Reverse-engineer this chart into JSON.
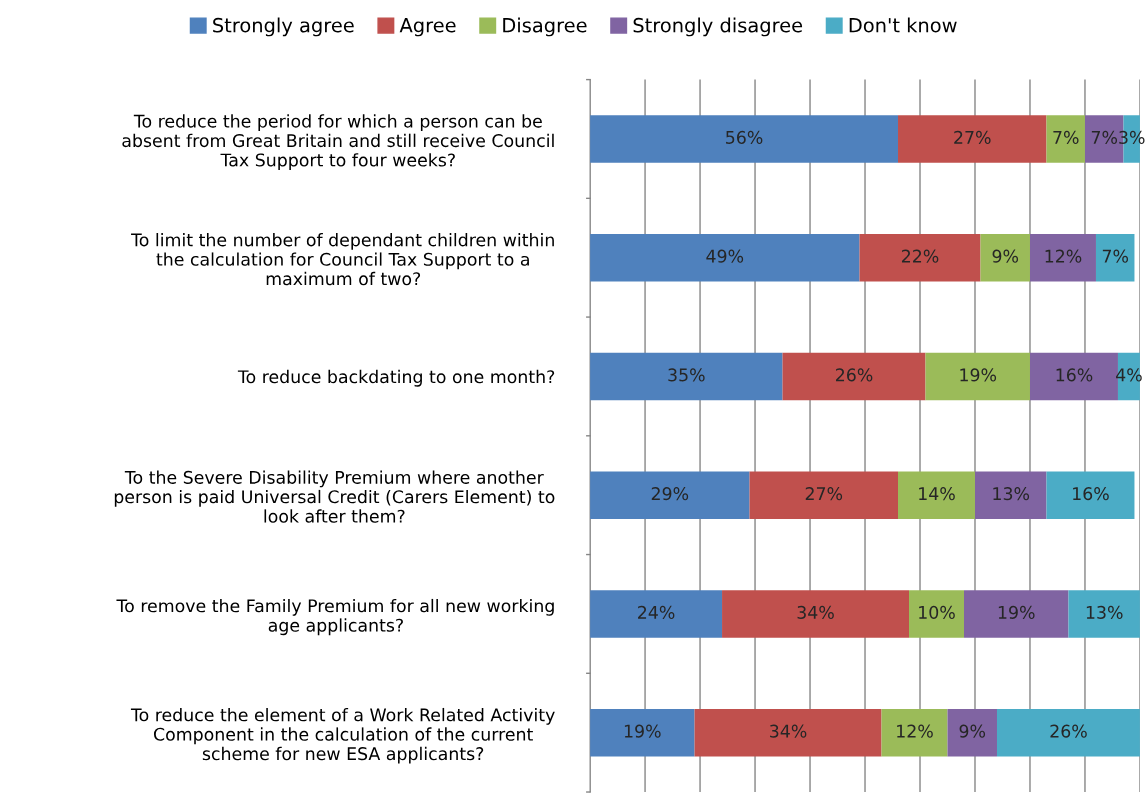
{
  "chart_data": {
    "type": "bar",
    "orientation": "horizontal",
    "stacked": true,
    "grid": "x",
    "legend": "top",
    "tick_labels": "y",
    "categories": [
      "To reduce the period for which a person can be\nabsent from Great Britain and still receive Council\nTax Support to four weeks?",
      "To limit the number of dependant children within\nthe calculation for Council Tax Support to a\nmaximum of two?",
      "To reduce backdating to one month?",
      "To the Severe Disability Premium where another\nperson is paid Universal Credit (Carers Element) to\nlook after them?",
      "To remove the Family Premium for all new working\nage applicants?",
      "To reduce the element of a Work Related Activity\nComponent in the calculation of the current\nscheme for new ESA applicants?"
    ],
    "series": [
      {
        "name": "Strongly agree",
        "color": "#4f81bd",
        "values": [
          56,
          49,
          35,
          29,
          24,
          19
        ],
        "value_labels": [
          "56%",
          "49%",
          "35%",
          "29%",
          "24%",
          "19%"
        ]
      },
      {
        "name": "Agree",
        "color": "#c0504d",
        "values": [
          27,
          22,
          26,
          27,
          34,
          34
        ],
        "value_labels": [
          "27%",
          "22%",
          "26%",
          "27%",
          "34%",
          "34%"
        ]
      },
      {
        "name": "Disagree",
        "color": "#9bbb59",
        "values": [
          7,
          9,
          19,
          14,
          10,
          12
        ],
        "value_labels": [
          "7%",
          "9%",
          "19%",
          "14%",
          "10%",
          "12%"
        ]
      },
      {
        "name": "Strongly disagree",
        "color": "#8064a2",
        "values": [
          7,
          12,
          16,
          13,
          19,
          9
        ],
        "value_labels": [
          "7%",
          "12%",
          "16%",
          "13%",
          "19%",
          "9%"
        ]
      },
      {
        "name": "Don't know",
        "color": "#4bacc6",
        "values": [
          3,
          7,
          4,
          16,
          13,
          26
        ],
        "value_labels": [
          "3%",
          "7%",
          "4%",
          "16%",
          "13%",
          "26%"
        ]
      }
    ]
  }
}
